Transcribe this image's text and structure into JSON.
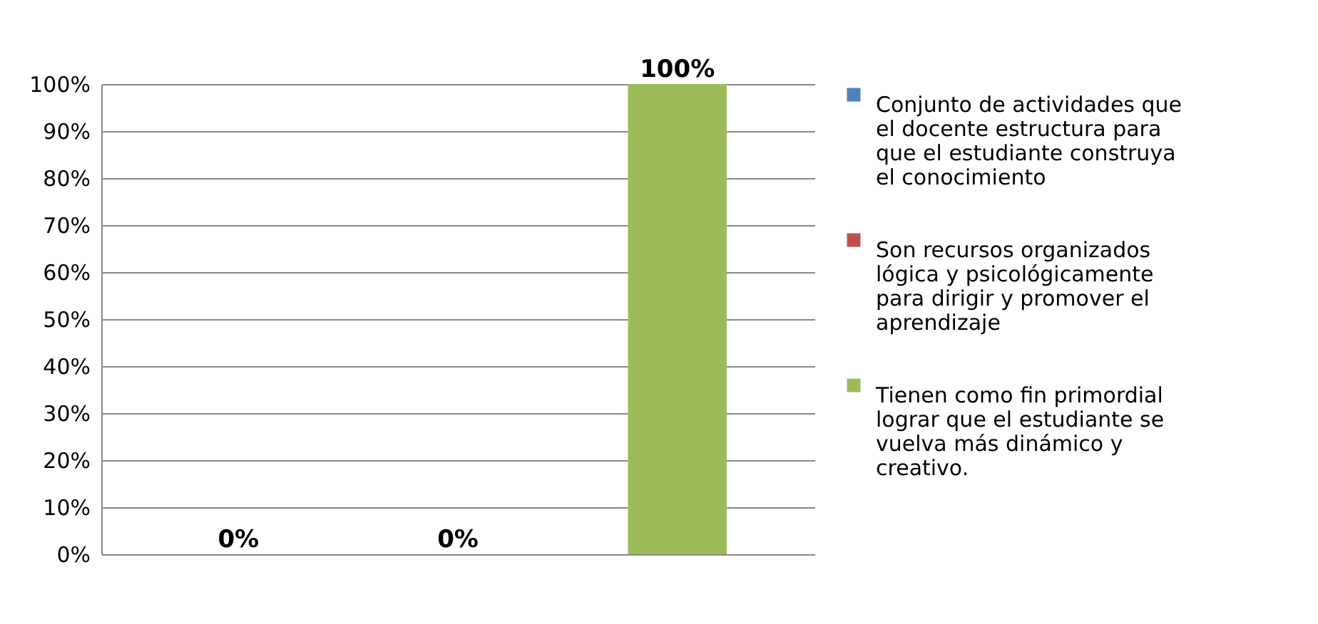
{
  "chart_data": {
    "type": "bar",
    "categories": [
      null,
      null,
      null
    ],
    "series": [
      {
        "name": "Conjunto de actividades que el docente estructura para que el estudiante construya el conocimiento",
        "color": "#4f81bd",
        "values": [
          0,
          null,
          null
        ],
        "value_labels": [
          "0%",
          null,
          null
        ]
      },
      {
        "name": "Son recursos organizados lógica y psicológicamente para dirigir y promover el aprendizaje",
        "color": "#c0504d",
        "values": [
          null,
          0,
          null
        ],
        "value_labels": [
          null,
          "0%",
          null
        ]
      },
      {
        "name": "Tienen como fin primordial lograr que el estudiante se vuelva más dinámico y creativo.",
        "color": "#9bbb59",
        "values": [
          null,
          null,
          100
        ],
        "value_labels": [
          null,
          null,
          "100%"
        ]
      }
    ],
    "ylim": [
      0,
      100
    ],
    "yticks": [
      {
        "value": 0,
        "label": "0%"
      },
      {
        "value": 10,
        "label": "10%"
      },
      {
        "value": 20,
        "label": "20%"
      },
      {
        "value": 30,
        "label": "30%"
      },
      {
        "value": 40,
        "label": "40%"
      },
      {
        "value": 50,
        "label": "50%"
      },
      {
        "value": 60,
        "label": "60%"
      },
      {
        "value": 70,
        "label": "70%"
      },
      {
        "value": 80,
        "label": "80%"
      },
      {
        "value": 90,
        "label": "90%"
      },
      {
        "value": 100,
        "label": "100%"
      }
    ],
    "grid": "y",
    "legend": "right",
    "tick_labels": "y"
  }
}
